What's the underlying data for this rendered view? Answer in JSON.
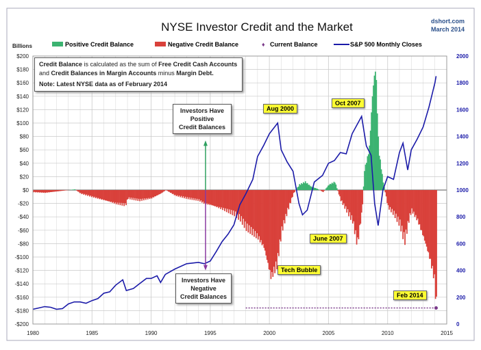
{
  "chart_data": {
    "type": "bar+line",
    "title": "NYSE Investor Credit and the Market",
    "source": "dshort.com",
    "date": "March 2014",
    "ylabel": "Billions",
    "ylim": [
      -200,
      200
    ],
    "y2lim": [
      0,
      2000
    ],
    "xlim": [
      1980,
      2015
    ],
    "grid": true,
    "legend_position": "top",
    "yticks": [
      "$200",
      "$180",
      "$160",
      "$140",
      "$120",
      "$100",
      "$80",
      "$60",
      "$40",
      "$20",
      "$0",
      "-$20",
      "-$40",
      "-$60",
      "-$80",
      "-$100",
      "-$120",
      "-$140",
      "-$160",
      "-$180",
      "-$200"
    ],
    "y2ticks": [
      "2000",
      "1800",
      "1600",
      "1400",
      "1200",
      "1000",
      "800",
      "600",
      "400",
      "200",
      "0"
    ],
    "xticks": [
      "1980",
      "1985",
      "1990",
      "1995",
      "2000",
      "2005",
      "2010",
      "2015"
    ],
    "legend": [
      "Positive Credit Balance",
      "Negative Credit Balance",
      "Current Balance",
      "S&P 500 Monthly Closes"
    ],
    "colors": {
      "positive": "#3cb371",
      "negative": "#d9413b",
      "sp500": "#1a1aa8",
      "current": "#7a3a8a"
    },
    "credit_balance": {
      "x": [
        1980,
        1981,
        1982,
        1983,
        1983.5,
        1984,
        1985,
        1986,
        1987,
        1987.8,
        1988,
        1989,
        1990,
        1990.8,
        1991.2,
        1992,
        1993,
        1994,
        1994.5,
        1995,
        1996,
        1997,
        1997.5,
        1998,
        1998.5,
        1999,
        1999.5,
        2000.1,
        2000.6,
        2001,
        2001.5,
        2002,
        2002.5,
        2003,
        2003.5,
        2004,
        2004.5,
        2005,
        2005.5,
        2006,
        2006.5,
        2007,
        2007.4,
        2007.8,
        2008,
        2008.4,
        2008.7,
        2008.95,
        2009.2,
        2009.6,
        2010,
        2010.5,
        2011,
        2011.4,
        2011.8,
        2012,
        2012.5,
        2013,
        2013.5,
        2013.9,
        2014.1
      ],
      "values": [
        -3,
        -4,
        -2,
        0,
        1,
        -5,
        -10,
        -15,
        -20,
        -22,
        -12,
        -15,
        -12,
        -5,
        0,
        -8,
        -12,
        -15,
        -20,
        -22,
        -28,
        -35,
        -42,
        -55,
        -62,
        -70,
        -85,
        -130,
        -110,
        -60,
        -30,
        -5,
        8,
        12,
        5,
        2,
        -3,
        8,
        12,
        -15,
        -30,
        -45,
        -80,
        -30,
        30,
        60,
        150,
        185,
        60,
        10,
        -25,
        -35,
        -50,
        -75,
        -40,
        -30,
        -45,
        -70,
        -100,
        -130,
        -175
      ]
    },
    "sp500": {
      "x": [
        1980,
        1980.5,
        1981,
        1981.5,
        1982,
        1982.5,
        1983,
        1983.5,
        1984,
        1984.5,
        1985,
        1985.5,
        1986,
        1986.5,
        1987,
        1987.6,
        1987.9,
        1988.5,
        1989,
        1989.6,
        1990,
        1990.5,
        1990.8,
        1991.2,
        1992,
        1993,
        1994,
        1994.5,
        1995,
        1995.5,
        1996,
        1996.5,
        1997,
        1997.5,
        1998,
        1998.6,
        1999,
        1999.5,
        2000,
        2000.7,
        2001,
        2001.5,
        2002,
        2002.5,
        2002.8,
        2003.2,
        2003.8,
        2004.5,
        2005,
        2005.5,
        2006,
        2006.5,
        2007,
        2007.8,
        2008.2,
        2008.6,
        2008.9,
        2009.2,
        2009.6,
        2010,
        2010.5,
        2011,
        2011.3,
        2011.7,
        2012,
        2012.5,
        2013,
        2013.5,
        2014,
        2014.1
      ],
      "values": [
        110,
        120,
        130,
        125,
        110,
        115,
        150,
        165,
        165,
        155,
        175,
        190,
        230,
        240,
        290,
        330,
        250,
        265,
        300,
        340,
        340,
        360,
        310,
        370,
        410,
        450,
        460,
        450,
        470,
        540,
        615,
        670,
        740,
        890,
        970,
        1080,
        1250,
        1330,
        1420,
        1500,
        1300,
        1210,
        1140,
        900,
        815,
        850,
        1060,
        1110,
        1200,
        1220,
        1280,
        1270,
        1420,
        1550,
        1330,
        1260,
        900,
        735,
        1000,
        1100,
        1080,
        1280,
        1350,
        1150,
        1300,
        1380,
        1470,
        1620,
        1800,
        1850
      ]
    },
    "current_balance": {
      "x": 2014.1,
      "value": -176
    },
    "annotations": {
      "note_line1_a": "Credit Balance",
      "note_line1_b": " is calculated as the sum of ",
      "note_line1_c": "Free Credit Cash Accounts",
      "note_line2_a": "and ",
      "note_line2_b": "Credit Balances in Margin Accounts",
      "note_line2_c": " minus ",
      "note_line2_d": "Margin Debt.",
      "note_line3": "Note: Latest NYSE data as of February 2014",
      "positive_box": [
        "Investors Have",
        "Positive",
        "Credit Balances"
      ],
      "negative_box": [
        "Investors Have",
        "Negative",
        "Credit Balances"
      ],
      "aug2000": "Aug 2000",
      "oct2007": "Oct 2007",
      "june2007": "June 2007",
      "tech_bubble": "Tech Bubble",
      "feb2014": "Feb 2014"
    }
  }
}
